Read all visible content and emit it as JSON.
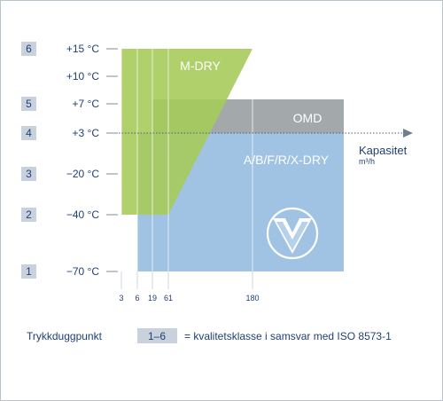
{
  "chart_data": {
    "type": "area",
    "y_ticks": [
      "+15 °C",
      "+10 °C",
      "+7 °C",
      "+3 °C",
      "−20 °C",
      "−40 °C",
      "−70 °C"
    ],
    "quality_classes": [
      "6",
      "",
      "5",
      "4",
      "3",
      "2",
      "1"
    ],
    "x_ticks": [
      "3",
      "6",
      "19",
      "61",
      "180"
    ],
    "x_axis_label": "Kapasitet",
    "x_axis_unit": "m³/h",
    "regions": [
      {
        "name": "A/B/F/R/X-DRY",
        "dewpoint_range": [
          "−70 °C",
          "+3 °C"
        ],
        "capacity_from": "6",
        "color": "#a0c2e3"
      },
      {
        "name": "OMD",
        "dewpoint_range": [
          "+3 °C",
          "+7 °C"
        ],
        "capacity_from": "19",
        "color": "#a3a9ab"
      },
      {
        "name": "M-DRY",
        "dewpoint_range": [
          "−40 °C",
          "+15 °C"
        ],
        "capacity_from": "3",
        "capacity_to": "180",
        "color": "#a6cb5a"
      }
    ],
    "legend": {
      "left_text": "Trykkduggpunkt",
      "box_text": "1–6",
      "right_text": "= kvalitetsklasse i samsvar med ISO 8573-1"
    },
    "colors": {
      "text": "#1f3f73",
      "class_box": "#c9d2dc",
      "axis": "#7d8b99",
      "logo_blue": "#2d7bc0"
    },
    "icons": [
      "company-logo-icon"
    ]
  }
}
